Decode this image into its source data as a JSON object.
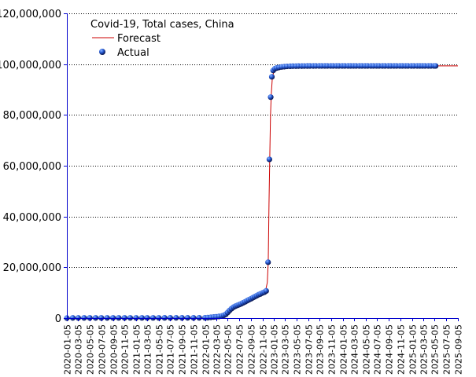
{
  "chart_data": {
    "type": "line",
    "title": "Covid-19, Total cases, China",
    "xlabel": "",
    "ylabel": "",
    "ylim": [
      0,
      120000000
    ],
    "y_ticks": [
      0,
      20000000,
      40000000,
      60000000,
      80000000,
      100000000,
      120000000
    ],
    "y_tick_labels": [
      "0",
      "20,000,000",
      "40,000,000",
      "60,000,000",
      "80,000,000",
      "100,000,000",
      "120,000,000"
    ],
    "xlim": [
      "2020-01-05",
      "2025-09-05"
    ],
    "x_tick_labels": [
      "2020-01-05",
      "2020-03-05",
      "2020-05-05",
      "2020-07-05",
      "2020-09-05",
      "2020-11-05",
      "2021-01-05",
      "2021-03-05",
      "2021-05-05",
      "2021-07-05",
      "2021-09-05",
      "2021-11-05",
      "2022-01-05",
      "2022-03-05",
      "2022-05-05",
      "2022-07-05",
      "2022-09-05",
      "2022-11-05",
      "2023-01-05",
      "2023-03-05",
      "2023-05-05",
      "2023-07-05",
      "2023-09-05",
      "2023-11-05",
      "2024-01-05",
      "2024-03-05",
      "2024-05-05",
      "2024-07-05",
      "2024-09-05",
      "2024-11-05",
      "2025-01-05",
      "2025-03-05",
      "2025-05-05",
      "2025-07-05",
      "2025-09-05"
    ],
    "grid": {
      "horizontal": true,
      "vertical": false,
      "style": "dotted"
    },
    "legend": {
      "placement": "top-left",
      "entries": [
        "Forecast",
        "Actual"
      ]
    },
    "colors": {
      "forecast": "#cc0000",
      "actual": "#1a56c8",
      "axis": "#0000cc",
      "grid": "#000000"
    },
    "series": [
      {
        "name": "Forecast",
        "type": "line",
        "points": [
          [
            "2020-01-05",
            0
          ],
          [
            "2021-06-01",
            100000
          ],
          [
            "2022-01-01",
            300000
          ],
          [
            "2022-03-15",
            600000
          ],
          [
            "2022-04-25",
            1500000
          ],
          [
            "2022-05-20",
            3500000
          ],
          [
            "2022-06-20",
            4800000
          ],
          [
            "2022-08-01",
            6200000
          ],
          [
            "2022-09-15",
            7600000
          ],
          [
            "2022-10-25",
            9000000
          ],
          [
            "2022-11-20",
            10200000
          ],
          [
            "2022-12-01",
            14000000
          ],
          [
            "2022-12-06",
            22000000
          ],
          [
            "2022-12-10",
            45000000
          ],
          [
            "2022-12-14",
            63000000
          ],
          [
            "2022-12-18",
            80000000
          ],
          [
            "2022-12-22",
            88000000
          ],
          [
            "2022-12-28",
            95000000
          ],
          [
            "2023-01-08",
            97800000
          ],
          [
            "2023-02-05",
            98700000
          ],
          [
            "2023-06-01",
            99200000
          ],
          [
            "2025-05-10",
            99300000
          ],
          [
            "2025-09-05",
            99300000
          ]
        ]
      },
      {
        "name": "Actual",
        "type": "scatter",
        "points": [
          [
            "2020-01-05",
            0
          ],
          [
            "2020-02-05",
            80000
          ],
          [
            "2020-03-05",
            81000
          ],
          [
            "2020-04-05",
            82000
          ],
          [
            "2020-05-05",
            83000
          ],
          [
            "2020-06-05",
            84000
          ],
          [
            "2020-07-05",
            86000
          ],
          [
            "2020-08-05",
            88000
          ],
          [
            "2020-09-05",
            90000
          ],
          [
            "2020-10-05",
            91000
          ],
          [
            "2020-11-05",
            92000
          ],
          [
            "2020-12-05",
            94000
          ],
          [
            "2021-01-05",
            96000
          ],
          [
            "2021-02-05",
            100000
          ],
          [
            "2021-03-05",
            101000
          ],
          [
            "2021-04-05",
            102000
          ],
          [
            "2021-05-05",
            103000
          ],
          [
            "2021-06-05",
            105000
          ],
          [
            "2021-07-05",
            107000
          ],
          [
            "2021-08-05",
            110000
          ],
          [
            "2021-09-05",
            112000
          ],
          [
            "2021-10-05",
            115000
          ],
          [
            "2021-11-05",
            120000
          ],
          [
            "2021-12-05",
            125000
          ],
          [
            "2022-01-05",
            130000
          ],
          [
            "2022-01-20",
            200000
          ],
          [
            "2022-02-05",
            300000
          ],
          [
            "2022-02-20",
            420000
          ],
          [
            "2022-03-05",
            500000
          ],
          [
            "2022-03-20",
            650000
          ],
          [
            "2022-04-05",
            850000
          ],
          [
            "2022-04-15",
            1100000
          ],
          [
            "2022-04-25",
            1500000
          ],
          [
            "2022-05-05",
            2200000
          ],
          [
            "2022-05-15",
            3000000
          ],
          [
            "2022-05-25",
            3700000
          ],
          [
            "2022-06-05",
            4300000
          ],
          [
            "2022-06-15",
            4700000
          ],
          [
            "2022-06-25",
            5000000
          ],
          [
            "2022-07-05",
            5300000
          ],
          [
            "2022-07-15",
            5600000
          ],
          [
            "2022-07-25",
            6000000
          ],
          [
            "2022-08-05",
            6400000
          ],
          [
            "2022-08-15",
            6800000
          ],
          [
            "2022-08-25",
            7200000
          ],
          [
            "2022-09-05",
            7600000
          ],
          [
            "2022-09-15",
            8000000
          ],
          [
            "2022-09-25",
            8400000
          ],
          [
            "2022-10-05",
            8800000
          ],
          [
            "2022-10-15",
            9200000
          ],
          [
            "2022-10-25",
            9500000
          ],
          [
            "2022-11-05",
            9900000
          ],
          [
            "2022-11-15",
            10200000
          ],
          [
            "2022-11-25",
            10700000
          ],
          [
            "2022-12-05",
            22000000
          ],
          [
            "2022-12-12",
            62500000
          ],
          [
            "2022-12-19",
            87000000
          ],
          [
            "2022-12-25",
            95000000
          ],
          [
            "2023-01-01",
            97500000
          ],
          [
            "2023-01-10",
            98200000
          ],
          [
            "2023-01-20",
            98500000
          ],
          [
            "2023-02-01",
            98700000
          ],
          [
            "2023-02-15",
            98900000
          ],
          [
            "2023-03-01",
            99000000
          ],
          [
            "2023-03-15",
            99100000
          ],
          [
            "2023-04-01",
            99150000
          ],
          [
            "2023-04-15",
            99200000
          ],
          [
            "2023-05-01",
            99200000
          ],
          [
            "2023-05-15",
            99250000
          ],
          [
            "2023-06-01",
            99250000
          ],
          [
            "2023-06-15",
            99260000
          ],
          [
            "2023-07-01",
            99270000
          ],
          [
            "2023-07-15",
            99280000
          ],
          [
            "2023-08-01",
            99280000
          ],
          [
            "2023-08-15",
            99290000
          ],
          [
            "2023-09-01",
            99290000
          ],
          [
            "2023-09-15",
            99290000
          ],
          [
            "2023-10-01",
            99300000
          ],
          [
            "2023-10-15",
            99300000
          ],
          [
            "2023-11-01",
            99300000
          ],
          [
            "2023-11-15",
            99300000
          ],
          [
            "2023-12-01",
            99300000
          ],
          [
            "2023-12-15",
            99300000
          ],
          [
            "2024-01-01",
            99300000
          ],
          [
            "2024-01-15",
            99300000
          ],
          [
            "2024-02-01",
            99300000
          ],
          [
            "2024-02-15",
            99300000
          ],
          [
            "2024-03-01",
            99300000
          ],
          [
            "2024-03-15",
            99300000
          ],
          [
            "2024-04-01",
            99300000
          ],
          [
            "2024-04-15",
            99300000
          ],
          [
            "2024-05-01",
            99300000
          ],
          [
            "2024-05-15",
            99300000
          ],
          [
            "2024-06-01",
            99300000
          ],
          [
            "2024-06-15",
            99300000
          ],
          [
            "2024-07-01",
            99300000
          ],
          [
            "2024-07-15",
            99300000
          ],
          [
            "2024-08-01",
            99300000
          ],
          [
            "2024-08-15",
            99300000
          ],
          [
            "2024-09-01",
            99300000
          ],
          [
            "2024-09-15",
            99300000
          ],
          [
            "2024-10-01",
            99300000
          ],
          [
            "2024-10-15",
            99300000
          ],
          [
            "2024-11-01",
            99300000
          ],
          [
            "2024-11-15",
            99300000
          ],
          [
            "2024-12-01",
            99300000
          ],
          [
            "2024-12-15",
            99300000
          ],
          [
            "2025-01-01",
            99300000
          ],
          [
            "2025-01-15",
            99300000
          ],
          [
            "2025-02-01",
            99300000
          ],
          [
            "2025-02-15",
            99300000
          ],
          [
            "2025-03-01",
            99300000
          ],
          [
            "2025-03-15",
            99300000
          ],
          [
            "2025-04-01",
            99300000
          ],
          [
            "2025-04-15",
            99300000
          ],
          [
            "2025-05-01",
            99300000
          ],
          [
            "2025-05-10",
            99300000
          ]
        ]
      }
    ]
  }
}
